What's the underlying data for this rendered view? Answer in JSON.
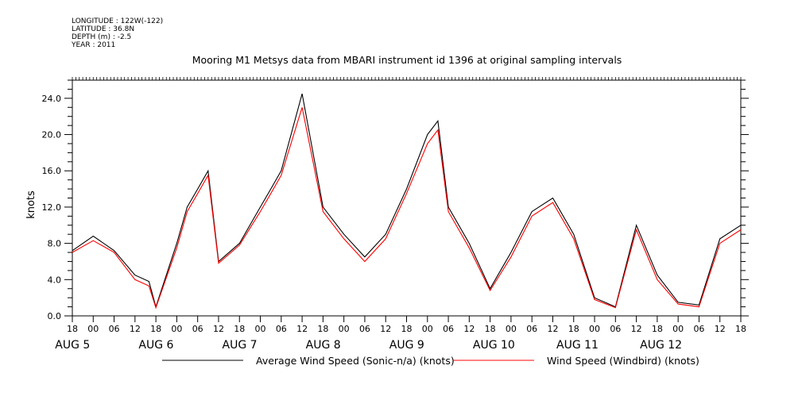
{
  "header": {
    "meta_lines": [
      "LONGITUDE : 122W(-122)",
      "LATITUDE : 36.8N",
      "DEPTH (m) : -2.5",
      "YEAR : 2011"
    ],
    "title": "Mooring M1 Metsys data from MBARI instrument id 1396 at original sampling intervals"
  },
  "chart_data": {
    "type": "line",
    "title": "Mooring M1 Metsys data from MBARI instrument id 1396 at original sampling intervals",
    "ylabel": "knots",
    "xlabel": "",
    "ylim": [
      0,
      26
    ],
    "xlim_hours_since_aug5_00": [
      -6,
      186
    ],
    "grid": false,
    "y_ticks": [
      "0.0",
      "4.0",
      "8.0",
      "12.0",
      "16.0",
      "20.0",
      "24.0"
    ],
    "x_hour_ticks": [
      "18",
      "00",
      "06",
      "12",
      "18",
      "00",
      "06",
      "12",
      "18",
      "00",
      "06",
      "12",
      "18",
      "00",
      "06",
      "12",
      "18",
      "00",
      "06",
      "12",
      "18",
      "00",
      "06",
      "12",
      "18",
      "00",
      "06",
      "12",
      "18",
      "00",
      "06",
      "12",
      "18"
    ],
    "x_date_labels": [
      "AUG  5",
      "AUG  6",
      "AUG  7",
      "AUG  8",
      "AUG  9",
      "AUG 10",
      "AUG 11",
      "AUG 12"
    ],
    "x": [
      "2011-08-04 18:00",
      "2011-08-05 00:00",
      "2011-08-05 06:00",
      "2011-08-05 12:00",
      "2011-08-05 16:00",
      "2011-08-05 18:00",
      "2011-08-06 00:00",
      "2011-08-06 03:00",
      "2011-08-06 06:00",
      "2011-08-06 09:00",
      "2011-08-06 12:00",
      "2011-08-06 18:00",
      "2011-08-07 00:00",
      "2011-08-07 03:00",
      "2011-08-07 06:00",
      "2011-08-07 12:00",
      "2011-08-07 18:00",
      "2011-08-08 00:00",
      "2011-08-08 06:00",
      "2011-08-08 12:00",
      "2011-08-08 18:00",
      "2011-08-09 00:00",
      "2011-08-09 03:00",
      "2011-08-09 06:00",
      "2011-08-09 12:00",
      "2011-08-09 18:00",
      "2011-08-10 00:00",
      "2011-08-10 06:00",
      "2011-08-10 12:00",
      "2011-08-10 18:00",
      "2011-08-11 00:00",
      "2011-08-11 06:00",
      "2011-08-11 12:00",
      "2011-08-11 18:00",
      "2011-08-12 00:00",
      "2011-08-12 06:00",
      "2011-08-12 12:00",
      "2011-08-12 18:00"
    ],
    "series": [
      {
        "name": "Average Wind Speed (Sonic-n/a) (knots)",
        "color": "#000000",
        "values": [
          7.2,
          8.8,
          7.2,
          4.5,
          3.8,
          1.0,
          8.0,
          12.0,
          14.0,
          16.0,
          6.0,
          8.0,
          12.0,
          14.0,
          16.0,
          24.5,
          12.0,
          9.0,
          6.5,
          9.0,
          14.0,
          20.0,
          21.5,
          12.0,
          8.0,
          3.0,
          7.0,
          11.5,
          13.0,
          9.0,
          2.0,
          1.0,
          10.0,
          4.5,
          1.5,
          1.2,
          8.5,
          10.0
        ]
      },
      {
        "name": "Wind Speed (Windbird) (knots)",
        "color": "#ff0000",
        "values": [
          7.0,
          8.3,
          7.0,
          4.0,
          3.3,
          0.9,
          7.5,
          11.5,
          13.5,
          15.5,
          5.8,
          7.8,
          11.5,
          13.5,
          15.5,
          23.0,
          11.5,
          8.5,
          6.0,
          8.5,
          13.5,
          19.0,
          20.5,
          11.5,
          7.5,
          2.8,
          6.5,
          11.0,
          12.5,
          8.5,
          1.8,
          0.9,
          9.5,
          4.0,
          1.3,
          1.0,
          8.0,
          9.5
        ]
      }
    ],
    "legend": [
      "Average Wind Speed (Sonic-n/a) (knots)",
      "Wind Speed (Windbird) (knots)"
    ],
    "legend_placement": "bottom"
  }
}
